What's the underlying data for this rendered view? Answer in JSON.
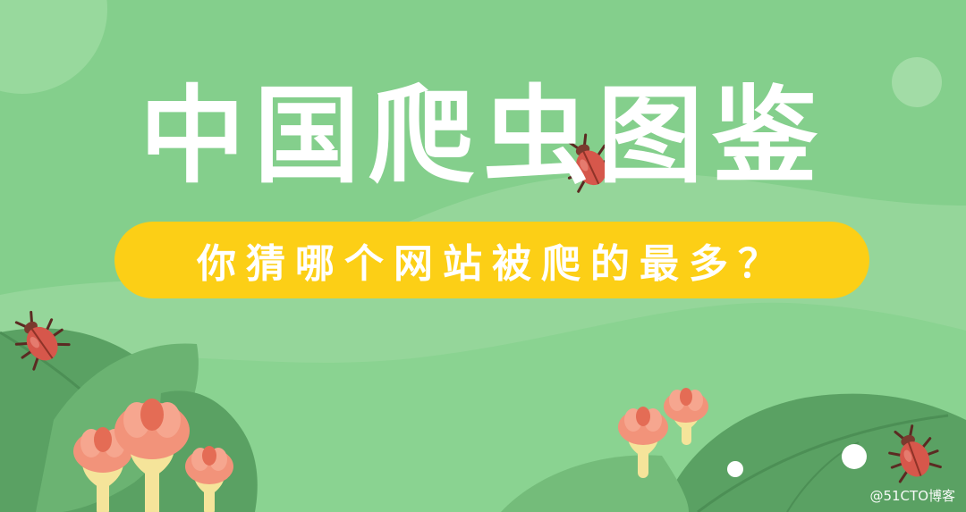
{
  "banner": {
    "title": "中国爬虫图鉴",
    "subtitle": "你猜哪个网站被爬的最多？",
    "watermark": "@51CTO博客"
  },
  "colors": {
    "background": "#84cf8c",
    "hill": "#97d99d",
    "leaf_dark": "#5aa163",
    "leaf_mid": "#74bc7a",
    "pill": "#fccf16",
    "text": "#ffffff",
    "bug": "#d6574b",
    "flower_petal": "#f2937a",
    "flower_stem": "#f5e49a"
  },
  "icons": [
    "beetle-icon",
    "flower-icon",
    "leaf-icon"
  ]
}
